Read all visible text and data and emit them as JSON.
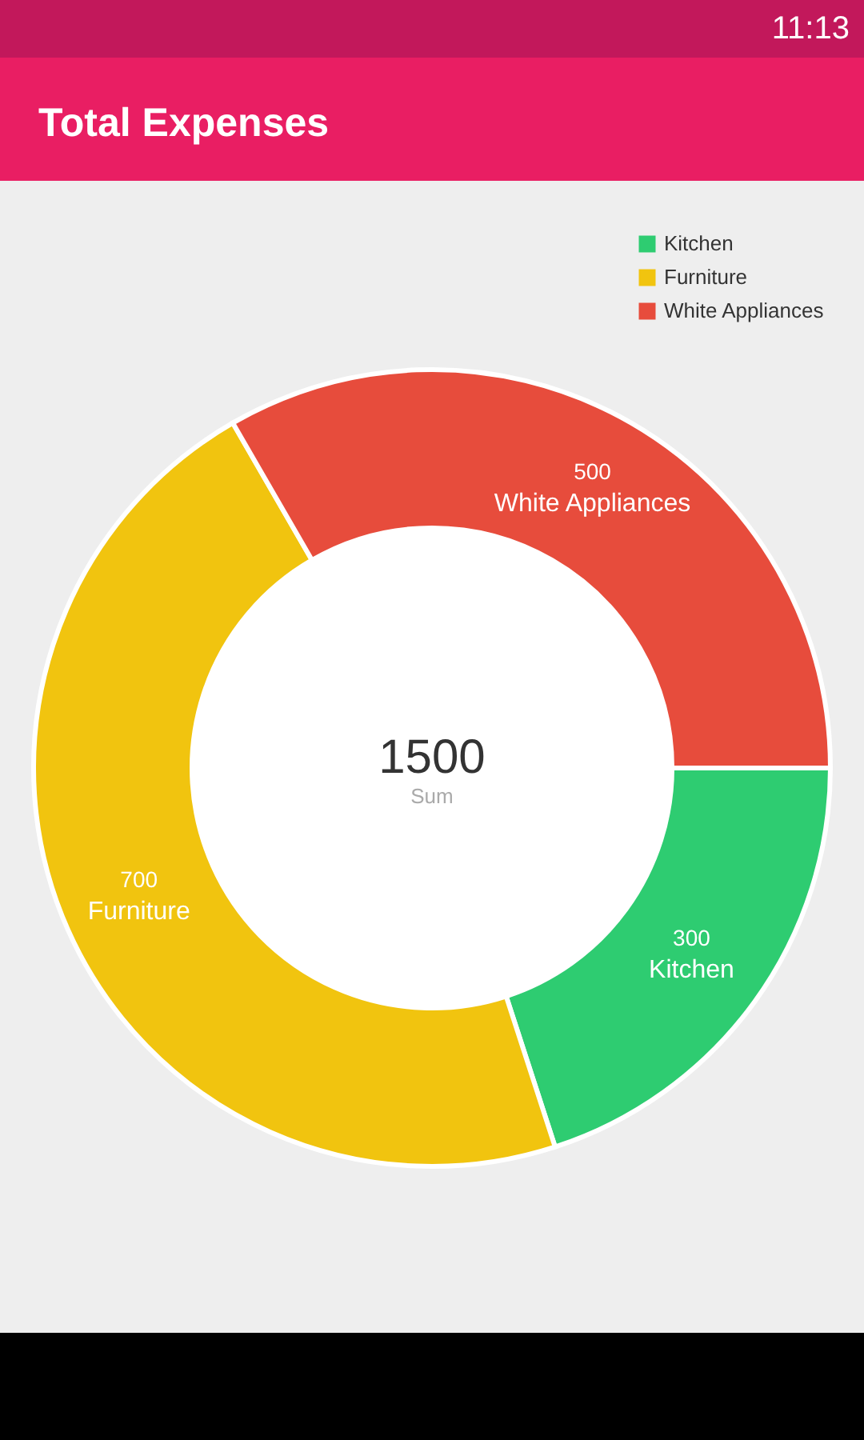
{
  "chart_data": {
    "type": "donut",
    "title": "Total Expenses",
    "categories": [
      "Kitchen",
      "Furniture",
      "White Appliances"
    ],
    "values": [
      300,
      700,
      500
    ],
    "colors": [
      "#2ecc71",
      "#f1c40f",
      "#e74c3c"
    ],
    "data_labels": true,
    "legend": "top right",
    "annotations": [
      "1500",
      "Sum",
      "11:13"
    ]
  }
}
